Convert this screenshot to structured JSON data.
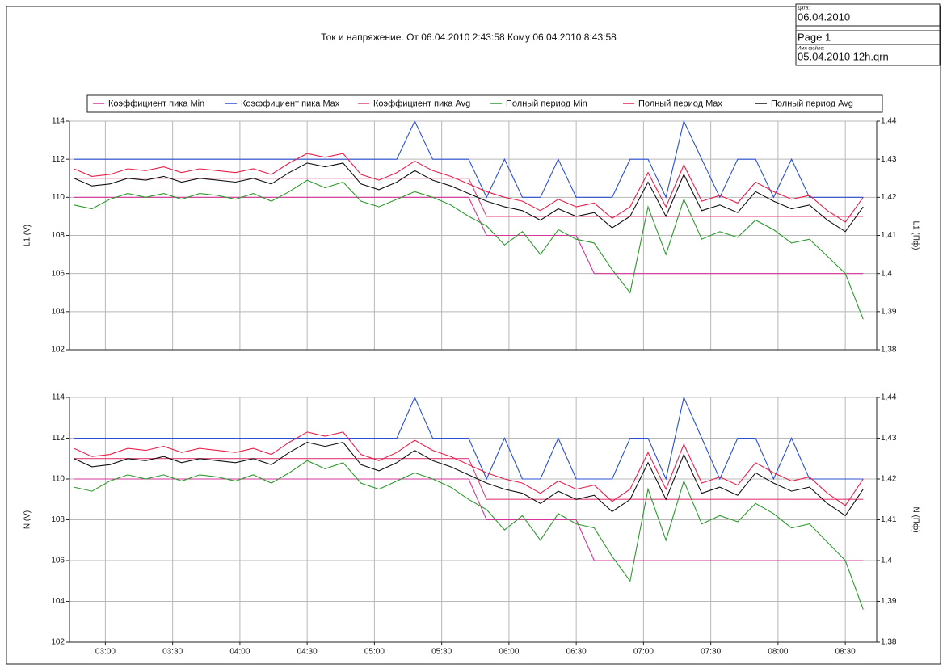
{
  "header": {
    "date_label": "Дата:",
    "date": "06.04.2010",
    "page": "Page 1",
    "file_label": "Имя файла:",
    "file": "05.04.2010 12h.qrn"
  },
  "chart_data": [
    {
      "type": "line",
      "title": "Ток и напряжение. От  06.04.2010 2:43:58 Кому 06.04.2010 8:43:58",
      "ylabel": "L1 (V)",
      "y2label": "L1 (Пф)",
      "grid": true,
      "xlim": [
        164,
        524
      ],
      "ylim": [
        102,
        114
      ],
      "y2lim": [
        1.38,
        1.44
      ],
      "yticks": [
        102,
        104,
        106,
        108,
        110,
        112,
        114
      ],
      "y2ticks": [
        {
          "value": 1.38,
          "label": "1,38"
        },
        {
          "value": 1.39,
          "label": "1,39"
        },
        {
          "value": 1.4,
          "label": "1,4"
        },
        {
          "value": 1.41,
          "label": "1,41"
        },
        {
          "value": 1.42,
          "label": "1,42"
        },
        {
          "value": 1.43,
          "label": "1,43"
        },
        {
          "value": 1.44,
          "label": "1,44"
        }
      ],
      "x": [
        166,
        174,
        182,
        190,
        198,
        206,
        214,
        222,
        230,
        238,
        246,
        254,
        262,
        270,
        278,
        286,
        294,
        302,
        310,
        318,
        326,
        334,
        342,
        350,
        358,
        366,
        374,
        382,
        390,
        398,
        406,
        414,
        422,
        430,
        438,
        446,
        454,
        462,
        470,
        478,
        486,
        494,
        502,
        510,
        518
      ],
      "series": [
        {
          "name": "Коэффициент пика Min",
          "color": "#d6349a",
          "axis": "y2",
          "values": [
            1.42,
            1.42,
            1.42,
            1.42,
            1.42,
            1.42,
            1.42,
            1.42,
            1.42,
            1.42,
            1.42,
            1.42,
            1.42,
            1.42,
            1.42,
            1.42,
            1.42,
            1.42,
            1.42,
            1.42,
            1.42,
            1.42,
            1.42,
            1.41,
            1.41,
            1.41,
            1.41,
            1.41,
            1.41,
            1.4,
            1.4,
            1.4,
            1.4,
            1.4,
            1.4,
            1.4,
            1.4,
            1.4,
            1.4,
            1.4,
            1.4,
            1.4,
            1.4,
            1.4,
            1.4
          ]
        },
        {
          "name": "Коэффициент пика Max",
          "color": "#2a4fd0",
          "axis": "y2",
          "values": [
            1.43,
            1.43,
            1.43,
            1.43,
            1.43,
            1.43,
            1.43,
            1.43,
            1.43,
            1.43,
            1.43,
            1.43,
            1.43,
            1.43,
            1.43,
            1.43,
            1.43,
            1.43,
            1.43,
            1.44,
            1.43,
            1.43,
            1.43,
            1.42,
            1.43,
            1.42,
            1.42,
            1.43,
            1.42,
            1.42,
            1.42,
            1.43,
            1.43,
            1.42,
            1.44,
            1.43,
            1.42,
            1.43,
            1.43,
            1.42,
            1.43,
            1.42,
            1.42,
            1.42,
            1.42
          ]
        },
        {
          "name": "Коэффициент пика Avg",
          "color": "#e0407a",
          "axis": "y2",
          "values": [
            1.425,
            1.425,
            1.425,
            1.425,
            1.425,
            1.425,
            1.425,
            1.425,
            1.425,
            1.425,
            1.425,
            1.425,
            1.425,
            1.425,
            1.425,
            1.425,
            1.425,
            1.425,
            1.425,
            1.425,
            1.425,
            1.425,
            1.425,
            1.415,
            1.415,
            1.415,
            1.415,
            1.415,
            1.415,
            1.415,
            1.415,
            1.415,
            1.415,
            1.415,
            1.415,
            1.415,
            1.415,
            1.415,
            1.415,
            1.415,
            1.415,
            1.415,
            1.415,
            1.415,
            1.415
          ]
        },
        {
          "name": "Полный период Min",
          "color": "#2e9a2e",
          "values": [
            109.6,
            109.4,
            109.9,
            110.2,
            110.0,
            110.2,
            109.9,
            110.2,
            110.1,
            109.9,
            110.2,
            109.8,
            110.3,
            110.9,
            110.5,
            110.8,
            109.8,
            109.5,
            109.9,
            110.3,
            110.0,
            109.6,
            109.0,
            108.5,
            107.5,
            108.2,
            107.0,
            108.3,
            107.8,
            107.6,
            106.2,
            105.0,
            109.5,
            107.0,
            109.9,
            107.8,
            108.2,
            107.9,
            108.8,
            108.3,
            107.6,
            107.8,
            106.9,
            106.0,
            103.6
          ]
        },
        {
          "name": "Полный период Max",
          "color": "#e8204a",
          "values": [
            111.5,
            111.1,
            111.2,
            111.5,
            111.4,
            111.6,
            111.3,
            111.5,
            111.4,
            111.3,
            111.5,
            111.2,
            111.8,
            112.3,
            112.1,
            112.3,
            111.2,
            110.9,
            111.3,
            111.9,
            111.4,
            111.1,
            110.7,
            110.3,
            110.0,
            109.8,
            109.3,
            109.9,
            109.5,
            109.7,
            108.9,
            109.5,
            111.3,
            109.5,
            111.7,
            109.8,
            110.1,
            109.7,
            110.8,
            110.3,
            109.9,
            110.1,
            109.3,
            108.7,
            110.0
          ]
        },
        {
          "name": "Полный период Avg",
          "color": "#111111",
          "values": [
            111.0,
            110.6,
            110.7,
            111.0,
            110.9,
            111.1,
            110.8,
            111.0,
            110.9,
            110.8,
            111.0,
            110.7,
            111.3,
            111.8,
            111.6,
            111.8,
            110.7,
            110.4,
            110.8,
            111.4,
            110.9,
            110.6,
            110.2,
            109.8,
            109.5,
            109.3,
            108.8,
            109.4,
            109.0,
            109.2,
            108.4,
            109.0,
            110.8,
            109.0,
            111.2,
            109.3,
            109.6,
            109.2,
            110.3,
            109.8,
            109.4,
            109.6,
            108.8,
            108.2,
            109.5
          ]
        }
      ]
    },
    {
      "type": "line",
      "ylabel": "N (V)",
      "y2label": "N (Пф)",
      "grid": true,
      "xlim": [
        164,
        524
      ],
      "ylim": [
        102,
        114
      ],
      "y2lim": [
        1.38,
        1.44
      ],
      "yticks": [
        102,
        104,
        106,
        108,
        110,
        112,
        114
      ],
      "y2ticks": [
        {
          "value": 1.38,
          "label": "1,38"
        },
        {
          "value": 1.39,
          "label": "1,39"
        },
        {
          "value": 1.4,
          "label": "1,4"
        },
        {
          "value": 1.41,
          "label": "1,41"
        },
        {
          "value": 1.42,
          "label": "1,42"
        },
        {
          "value": 1.43,
          "label": "1,43"
        },
        {
          "value": 1.44,
          "label": "1,44"
        }
      ],
      "xticks": [
        {
          "value": 180,
          "label": "03:00"
        },
        {
          "value": 210,
          "label": "03:30"
        },
        {
          "value": 240,
          "label": "04:00"
        },
        {
          "value": 270,
          "label": "04:30"
        },
        {
          "value": 300,
          "label": "05:00"
        },
        {
          "value": 330,
          "label": "05:30"
        },
        {
          "value": 360,
          "label": "06:00"
        },
        {
          "value": 390,
          "label": "06:30"
        },
        {
          "value": 420,
          "label": "07:00"
        },
        {
          "value": 450,
          "label": "07:30"
        },
        {
          "value": 480,
          "label": "08:00"
        },
        {
          "value": 510,
          "label": "08:30"
        }
      ],
      "x": [
        166,
        174,
        182,
        190,
        198,
        206,
        214,
        222,
        230,
        238,
        246,
        254,
        262,
        270,
        278,
        286,
        294,
        302,
        310,
        318,
        326,
        334,
        342,
        350,
        358,
        366,
        374,
        382,
        390,
        398,
        406,
        414,
        422,
        430,
        438,
        446,
        454,
        462,
        470,
        478,
        486,
        494,
        502,
        510,
        518
      ],
      "series": [
        {
          "color": "#d6349a",
          "axis": "y2",
          "values": [
            1.42,
            1.42,
            1.42,
            1.42,
            1.42,
            1.42,
            1.42,
            1.42,
            1.42,
            1.42,
            1.42,
            1.42,
            1.42,
            1.42,
            1.42,
            1.42,
            1.42,
            1.42,
            1.42,
            1.42,
            1.42,
            1.42,
            1.42,
            1.41,
            1.41,
            1.41,
            1.41,
            1.41,
            1.41,
            1.4,
            1.4,
            1.4,
            1.4,
            1.4,
            1.4,
            1.4,
            1.4,
            1.4,
            1.4,
            1.4,
            1.4,
            1.4,
            1.4,
            1.4,
            1.4
          ]
        },
        {
          "color": "#2a4fd0",
          "axis": "y2",
          "values": [
            1.43,
            1.43,
            1.43,
            1.43,
            1.43,
            1.43,
            1.43,
            1.43,
            1.43,
            1.43,
            1.43,
            1.43,
            1.43,
            1.43,
            1.43,
            1.43,
            1.43,
            1.43,
            1.43,
            1.44,
            1.43,
            1.43,
            1.43,
            1.42,
            1.43,
            1.42,
            1.42,
            1.43,
            1.42,
            1.42,
            1.42,
            1.43,
            1.43,
            1.42,
            1.44,
            1.43,
            1.42,
            1.43,
            1.43,
            1.42,
            1.43,
            1.42,
            1.42,
            1.42,
            1.42
          ]
        },
        {
          "color": "#e0407a",
          "axis": "y2",
          "values": [
            1.425,
            1.425,
            1.425,
            1.425,
            1.425,
            1.425,
            1.425,
            1.425,
            1.425,
            1.425,
            1.425,
            1.425,
            1.425,
            1.425,
            1.425,
            1.425,
            1.425,
            1.425,
            1.425,
            1.425,
            1.425,
            1.425,
            1.425,
            1.415,
            1.415,
            1.415,
            1.415,
            1.415,
            1.415,
            1.415,
            1.415,
            1.415,
            1.415,
            1.415,
            1.415,
            1.415,
            1.415,
            1.415,
            1.415,
            1.415,
            1.415,
            1.415,
            1.415,
            1.415,
            1.415
          ]
        },
        {
          "color": "#2e9a2e",
          "values": [
            109.6,
            109.4,
            109.9,
            110.2,
            110.0,
            110.2,
            109.9,
            110.2,
            110.1,
            109.9,
            110.2,
            109.8,
            110.3,
            110.9,
            110.5,
            110.8,
            109.8,
            109.5,
            109.9,
            110.3,
            110.0,
            109.6,
            109.0,
            108.5,
            107.5,
            108.2,
            107.0,
            108.3,
            107.8,
            107.6,
            106.2,
            105.0,
            109.5,
            107.0,
            109.9,
            107.8,
            108.2,
            107.9,
            108.8,
            108.3,
            107.6,
            107.8,
            106.9,
            106.0,
            103.6
          ]
        },
        {
          "color": "#e8204a",
          "values": [
            111.5,
            111.1,
            111.2,
            111.5,
            111.4,
            111.6,
            111.3,
            111.5,
            111.4,
            111.3,
            111.5,
            111.2,
            111.8,
            112.3,
            112.1,
            112.3,
            111.2,
            110.9,
            111.3,
            111.9,
            111.4,
            111.1,
            110.7,
            110.3,
            110.0,
            109.8,
            109.3,
            109.9,
            109.5,
            109.7,
            108.9,
            109.5,
            111.3,
            109.5,
            111.7,
            109.8,
            110.1,
            109.7,
            110.8,
            110.3,
            109.9,
            110.1,
            109.3,
            108.7,
            110.0
          ]
        },
        {
          "color": "#111111",
          "values": [
            111.0,
            110.6,
            110.7,
            111.0,
            110.9,
            111.1,
            110.8,
            111.0,
            110.9,
            110.8,
            111.0,
            110.7,
            111.3,
            111.8,
            111.6,
            111.8,
            110.7,
            110.4,
            110.8,
            111.4,
            110.9,
            110.6,
            110.2,
            109.8,
            109.5,
            109.3,
            108.8,
            109.4,
            109.0,
            109.2,
            108.4,
            109.0,
            110.8,
            109.0,
            111.2,
            109.3,
            109.6,
            109.2,
            110.3,
            109.8,
            109.4,
            109.6,
            108.8,
            108.2,
            109.5
          ]
        }
      ]
    }
  ]
}
